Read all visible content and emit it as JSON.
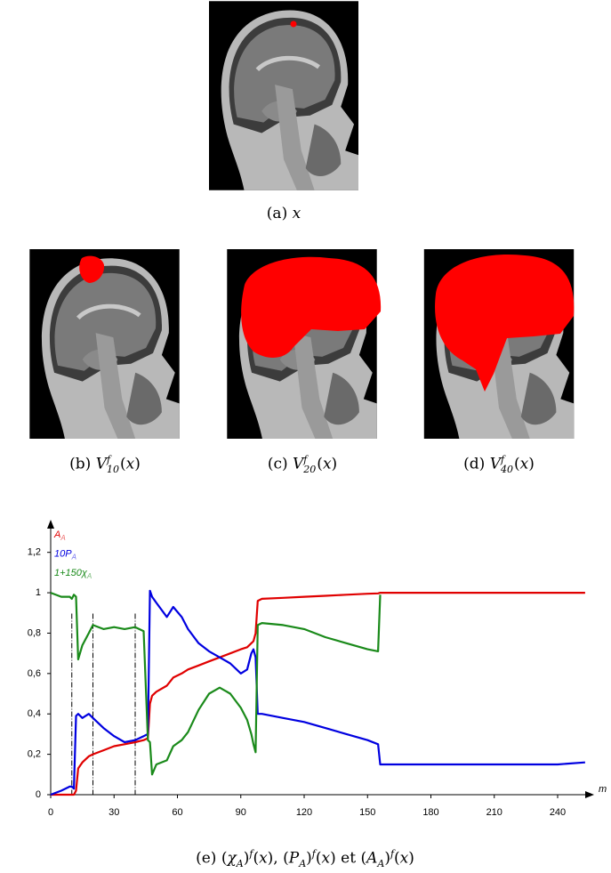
{
  "figure": {
    "captions": [
      [
        {
          "t": "(a) "
        },
        {
          "m": "x"
        }
      ],
      [
        {
          "t": "(b) "
        },
        {
          "m": "V"
        },
        {
          "sup": "f",
          "sub": "10"
        },
        {
          "t": "("
        },
        {
          "m": "x"
        },
        {
          "t": ")"
        }
      ],
      [
        {
          "t": "(c) "
        },
        {
          "m": "V"
        },
        {
          "sup": "f",
          "sub": "20"
        },
        {
          "t": "("
        },
        {
          "m": "x"
        },
        {
          "t": ")"
        }
      ],
      [
        {
          "t": "(d) "
        },
        {
          "m": "V"
        },
        {
          "sup": "f",
          "sub": "40"
        },
        {
          "t": "("
        },
        {
          "m": "x"
        },
        {
          "t": ")"
        }
      ],
      [
        {
          "t": "(e) ("
        },
        {
          "m": "χ"
        },
        {
          "sub": "A"
        },
        {
          "t": ")"
        },
        {
          "sup": "f"
        },
        {
          "t": "("
        },
        {
          "m": "x"
        },
        {
          "t": "), ("
        },
        {
          "m": "P"
        },
        {
          "sub": "A"
        },
        {
          "t": ")"
        },
        {
          "sup": "f"
        },
        {
          "t": "("
        },
        {
          "m": "x"
        },
        {
          "t": ") et ("
        },
        {
          "m": "A"
        },
        {
          "sub": "A"
        },
        {
          "t": ")"
        },
        {
          "sup": "f"
        },
        {
          "t": "("
        },
        {
          "m": "x"
        },
        {
          "t": ")"
        }
      ]
    ]
  },
  "chart_data": {
    "type": "line",
    "x": [
      0,
      5,
      9,
      10,
      11,
      12,
      13,
      15,
      18,
      20,
      25,
      30,
      35,
      40,
      44,
      46,
      47,
      48,
      50,
      55,
      58,
      62,
      65,
      70,
      75,
      80,
      85,
      90,
      93,
      95,
      96,
      97,
      98,
      100,
      110,
      120,
      130,
      140,
      150,
      155,
      156,
      157,
      160,
      180,
      200,
      220,
      240,
      253
    ],
    "series": [
      {
        "name": "A",
        "name_sub": "A",
        "color": "#e00000",
        "values": [
          0,
          0,
          0,
          0,
          0,
          0.02,
          0.13,
          0.16,
          0.19,
          0.2,
          0.22,
          0.24,
          0.25,
          0.26,
          0.27,
          0.28,
          0.45,
          0.49,
          0.51,
          0.54,
          0.58,
          0.6,
          0.62,
          0.64,
          0.66,
          0.68,
          0.7,
          0.72,
          0.73,
          0.75,
          0.76,
          0.8,
          0.96,
          0.97,
          0.975,
          0.98,
          0.985,
          0.99,
          0.995,
          0.997,
          1,
          1,
          1,
          1,
          1,
          1,
          1,
          1
        ]
      },
      {
        "name": "10P",
        "name_sub": "A",
        "color": "#0000e0",
        "values": [
          0,
          0.02,
          0.04,
          0.04,
          0.03,
          0.39,
          0.4,
          0.38,
          0.4,
          0.38,
          0.33,
          0.29,
          0.26,
          0.27,
          0.29,
          0.3,
          1.01,
          0.98,
          0.95,
          0.88,
          0.93,
          0.88,
          0.82,
          0.75,
          0.71,
          0.68,
          0.65,
          0.6,
          0.62,
          0.7,
          0.72,
          0.68,
          0.4,
          0.4,
          0.38,
          0.36,
          0.33,
          0.3,
          0.27,
          0.25,
          0.15,
          0.15,
          0.15,
          0.15,
          0.15,
          0.15,
          0.15,
          0.16
        ]
      },
      {
        "name": "1+150χ",
        "name_sub": "A",
        "color": "#1a8a1a",
        "values": [
          1,
          0.98,
          0.98,
          0.97,
          0.99,
          0.98,
          0.67,
          0.74,
          0.8,
          0.84,
          0.82,
          0.83,
          0.82,
          0.83,
          0.81,
          0.27,
          0.26,
          0.1,
          0.15,
          0.17,
          0.24,
          0.27,
          0.31,
          0.42,
          0.5,
          0.53,
          0.5,
          0.43,
          0.37,
          0.3,
          0.25,
          0.21,
          0.84,
          0.85,
          0.84,
          0.82,
          0.78,
          0.75,
          0.72,
          0.71,
          0.99,
          null,
          null,
          null,
          null,
          null,
          null,
          null
        ]
      }
    ],
    "vlines": [
      10,
      20,
      40
    ],
    "xlim": [
      0,
      256
    ],
    "ylim": [
      0,
      1.3
    ],
    "xticks": [
      0,
      30,
      60,
      90,
      120,
      150,
      180,
      210,
      240
    ],
    "yticks": [
      0,
      {
        "value": 0.2,
        "label": "0,2"
      },
      {
        "value": 0.4,
        "label": "0,4"
      },
      {
        "value": 0.6,
        "label": "0,6"
      },
      {
        "value": 0.8,
        "label": "0,8"
      },
      1,
      {
        "value": 1.2,
        "label": "1,2"
      }
    ],
    "xlabel": "m"
  }
}
